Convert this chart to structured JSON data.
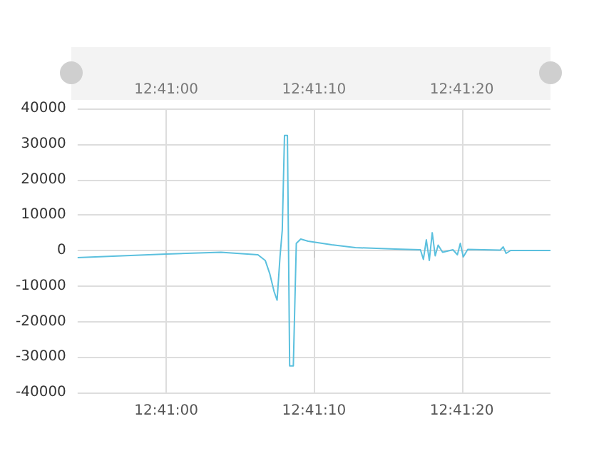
{
  "chart_data": {
    "type": "line",
    "x": [
      12.681667,
      12.6825,
      12.683333,
      12.684361,
      12.685056,
      12.685194,
      12.685278,
      12.685361,
      12.685417,
      12.685472,
      12.685514,
      12.685556,
      12.685611,
      12.685653,
      12.685722,
      12.685778,
      12.685861,
      12.686,
      12.686444,
      12.686889,
      12.687639,
      12.688111,
      12.688167,
      12.688222,
      12.688278,
      12.688333,
      12.688389,
      12.688444,
      12.688528,
      12.688722,
      12.688806,
      12.688861,
      12.688917,
      12.689,
      12.689611,
      12.689667,
      12.689722,
      12.689806,
      12.690556
    ],
    "series": [
      {
        "color": "#5bc0de",
        "values": [
          -2000,
          -1500,
          -1000,
          -500,
          -1200,
          -2800,
          -6500,
          -11600,
          -14000,
          -1700,
          5700,
          32400,
          32400,
          -32500,
          -32500,
          2000,
          3200,
          2600,
          1600,
          800,
          400,
          200,
          -2500,
          3000,
          -2800,
          5000,
          -1500,
          1500,
          -500,
          200,
          -1200,
          2000,
          -1800,
          300,
          100,
          1000,
          -800,
          0,
          0
        ]
      }
    ],
    "xlim": [
      12.681667,
      12.690556
    ],
    "xticks": [
      {
        "value": 12.683333,
        "label": "12:41:00"
      },
      {
        "value": 12.686111,
        "label": "12:41:10"
      },
      {
        "value": 12.688889,
        "label": "12:41:20"
      }
    ],
    "x2lim": [
      12.681667,
      12.690556
    ],
    "x2ticks": [
      {
        "value": 12.683333,
        "label": "12:41:00"
      },
      {
        "value": 12.686111,
        "label": "12:41:10"
      },
      {
        "value": 12.688889,
        "label": "12:41:20"
      }
    ],
    "ylim": [
      -40000,
      40000
    ],
    "yticks": [
      -40000,
      -30000,
      -20000,
      -10000,
      0,
      10000,
      20000,
      30000,
      40000
    ],
    "grid": true,
    "marker": "none",
    "line_style": "solid"
  }
}
